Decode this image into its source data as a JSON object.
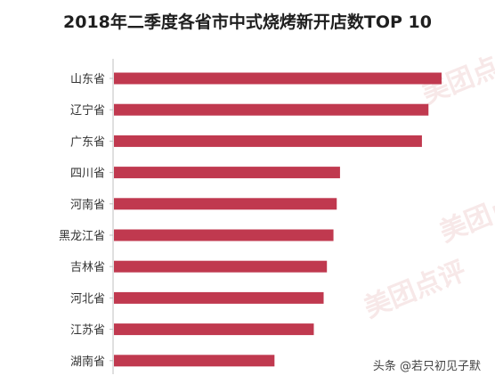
{
  "chart_data": {
    "type": "bar",
    "orientation": "horizontal",
    "title": "2018年二季度各省市中式烧烤新开店数TOP 10",
    "categories": [
      "山东省",
      "辽宁省",
      "广东省",
      "四川省",
      "河南省",
      "黑龙江省",
      "吉林省",
      "河北省",
      "江苏省",
      "湖南省"
    ],
    "values": [
      100,
      96,
      94,
      69,
      68,
      67,
      65,
      64,
      61,
      49
    ],
    "xlim": [
      0,
      100
    ],
    "bar_color": "#c0394f",
    "grid": false,
    "legend": "none"
  },
  "watermark": "美团点评",
  "footer_text": "头条 @若只初见子默"
}
